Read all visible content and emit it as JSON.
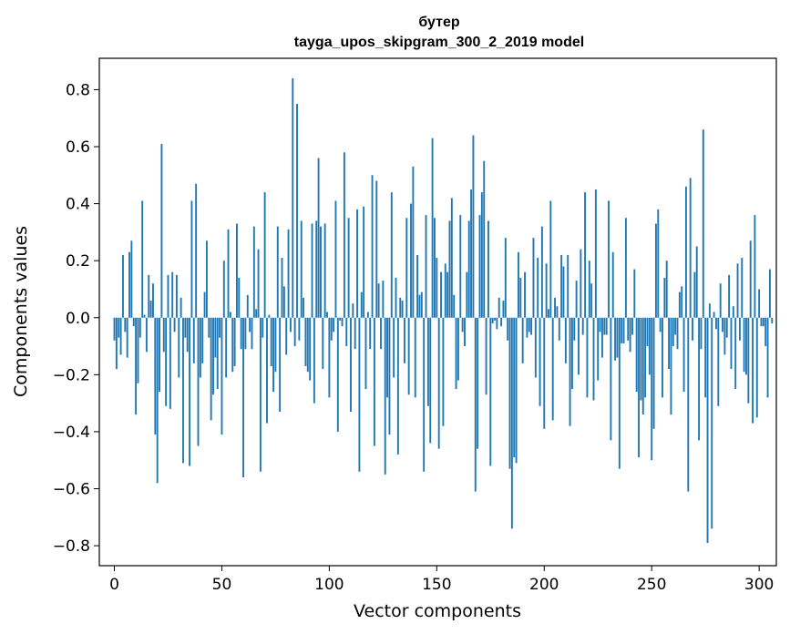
{
  "chart_data": {
    "type": "bar",
    "title": "бутер",
    "subtitle": "tayga_upos_skipgram_300_2_2019 model",
    "xlabel": "Vector components",
    "ylabel": "Components values",
    "xlim": [
      -7,
      308
    ],
    "ylim": [
      -0.87,
      0.91
    ],
    "grid": false,
    "legend": "none",
    "bar_color": "#1f77b4",
    "x_ticks": [
      {
        "value": 0,
        "label": "0"
      },
      {
        "value": 50,
        "label": "50"
      },
      {
        "value": 100,
        "label": "100"
      },
      {
        "value": 150,
        "label": "150"
      },
      {
        "value": 200,
        "label": "200"
      },
      {
        "value": 250,
        "label": "250"
      },
      {
        "value": 300,
        "label": "300"
      }
    ],
    "y_ticks": [
      {
        "value": -0.8,
        "label": "−0.8"
      },
      {
        "value": -0.6,
        "label": "−0.6"
      },
      {
        "value": -0.4,
        "label": "−0.4"
      },
      {
        "value": -0.2,
        "label": "−0.2"
      },
      {
        "value": 0.0,
        "label": "0.0"
      },
      {
        "value": 0.2,
        "label": "0.2"
      },
      {
        "value": 0.4,
        "label": "0.4"
      },
      {
        "value": 0.6,
        "label": "0.6"
      },
      {
        "value": 0.8,
        "label": "0.8"
      }
    ],
    "values": [
      -0.08,
      -0.18,
      -0.07,
      -0.13,
      0.22,
      -0.05,
      -0.14,
      0.23,
      0.27,
      -0.03,
      -0.34,
      -0.23,
      -0.07,
      0.41,
      0.01,
      -0.12,
      0.15,
      0.06,
      0.12,
      -0.41,
      -0.58,
      -0.26,
      0.61,
      -0.12,
      -0.31,
      0.15,
      -0.32,
      0.16,
      -0.05,
      0.15,
      -0.21,
      0.07,
      -0.51,
      -0.07,
      -0.12,
      -0.52,
      0.41,
      -0.16,
      0.47,
      -0.45,
      -0.21,
      -0.16,
      0.09,
      0.27,
      -0.07,
      -0.36,
      -0.27,
      -0.14,
      -0.25,
      -0.07,
      -0.41,
      0.2,
      -0.21,
      0.31,
      0.02,
      -0.19,
      -0.17,
      0.33,
      0.14,
      -0.11,
      -0.56,
      -0.11,
      0.08,
      -0.05,
      -0.11,
      0.32,
      0.03,
      0.24,
      -0.54,
      -0.07,
      0.44,
      -0.37,
      0.01,
      -0.17,
      -0.26,
      -0.19,
      0.32,
      -0.33,
      0.21,
      0.11,
      -0.13,
      0.31,
      -0.05,
      0.84,
      -0.1,
      0.75,
      -0.08,
      0.34,
      0.07,
      -0.17,
      -0.19,
      -0.22,
      0.33,
      -0.3,
      0.34,
      0.56,
      0.32,
      -0.18,
      0.33,
      0.02,
      -0.28,
      -0.08,
      -0.05,
      0.41,
      -0.4,
      -0.01,
      -0.03,
      0.58,
      -0.1,
      0.35,
      -0.33,
      0.05,
      -0.11,
      0.38,
      -0.54,
      0.09,
      0.39,
      -0.25,
      0.02,
      -0.11,
      0.5,
      -0.45,
      0.48,
      0.12,
      -0.11,
      0.13,
      -0.55,
      -0.28,
      -0.41,
      0.44,
      -0.21,
      0.14,
      -0.48,
      0.07,
      0.06,
      -0.16,
      0.35,
      -0.27,
      0.4,
      0.53,
      -0.28,
      0.22,
      0.08,
      0.09,
      -0.54,
      0.36,
      -0.31,
      -0.44,
      0.63,
      0.35,
      0.21,
      -0.46,
      0.16,
      -0.38,
      0.19,
      0.16,
      0.34,
      0.42,
      0.08,
      -0.25,
      -0.22,
      0.36,
      -0.05,
      -0.1,
      0.16,
      0.34,
      0.45,
      0.64,
      -0.61,
      -0.46,
      0.36,
      0.44,
      0.55,
      -0.27,
      0.34,
      -0.52,
      -0.02,
      -0.01,
      -0.04,
      0.07,
      -0.03,
      0.06,
      0.28,
      -0.08,
      -0.53,
      -0.74,
      -0.49,
      -0.51,
      0.23,
      0.14,
      -0.16,
      0.16,
      -0.07,
      -0.05,
      -0.06,
      0.28,
      -0.21,
      0.21,
      -0.31,
      0.32,
      -0.39,
      0.19,
      0.03,
      0.41,
      -0.36,
      0.07,
      0.04,
      -0.08,
      0.22,
      0.18,
      -0.16,
      0.22,
      -0.38,
      -0.25,
      -0.08,
      0.13,
      -0.2,
      0.24,
      -0.06,
      0.44,
      -0.28,
      0.2,
      0.12,
      -0.29,
      0.45,
      -0.22,
      -0.05,
      -0.14,
      -0.06,
      -0.06,
      0.41,
      -0.43,
      0.23,
      -0.15,
      -0.14,
      -0.53,
      -0.09,
      -0.09,
      0.35,
      -0.08,
      -0.12,
      -0.06,
      0.17,
      -0.26,
      -0.49,
      -0.29,
      -0.34,
      -0.28,
      -0.1,
      -0.2,
      -0.5,
      -0.39,
      0.33,
      0.38,
      -0.05,
      -0.28,
      0.14,
      0.2,
      -0.18,
      -0.34,
      -0.1,
      -0.06,
      -0.11,
      0.09,
      0.11,
      -0.26,
      0.46,
      -0.61,
      0.49,
      -0.08,
      0.16,
      0.25,
      -0.43,
      -0.11,
      0.66,
      -0.28,
      -0.79,
      0.05,
      -0.74,
      0.02,
      -0.04,
      -0.31,
      0.12,
      -0.05,
      -0.13,
      -0.07,
      0.15,
      -0.18,
      0.04,
      -0.25,
      0.19,
      -0.08,
      0.21,
      -0.19,
      -0.2,
      -0.3,
      0.27,
      -0.37,
      0.36,
      -0.35,
      0.1,
      -0.03,
      -0.03,
      -0.1,
      -0.28,
      0.17,
      -0.02
    ]
  }
}
